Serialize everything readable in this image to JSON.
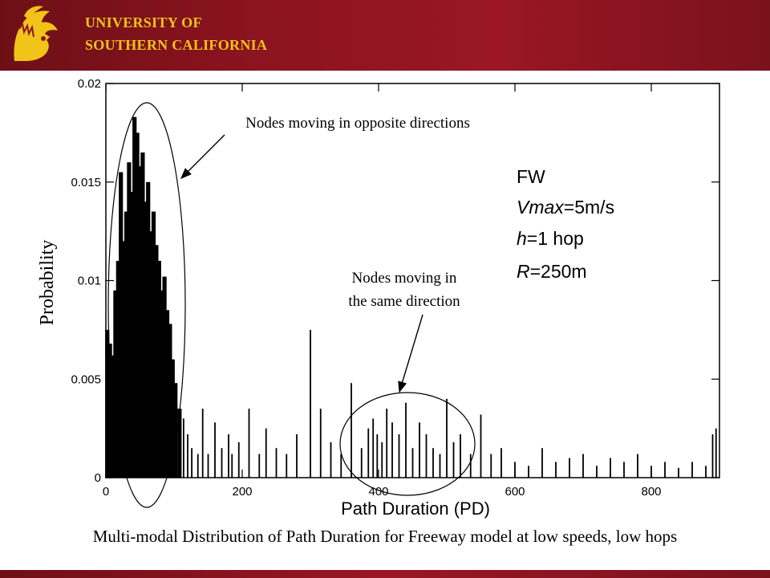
{
  "header": {
    "university_line1": "UNIVERSITY OF",
    "university_line2": "SOUTHERN CALIFORNIA",
    "logo_icon": "trojan-head-icon",
    "bar_color": "#8c1420",
    "text_color": "#f2c318"
  },
  "caption": "Multi-modal Distribution of Path Duration for Freeway model at low speeds, low hops",
  "annotations": {
    "opposite": "Nodes moving in opposite directions",
    "same_line1": "Nodes moving in",
    "same_line2": "the same direction"
  },
  "params": {
    "model": "FW",
    "vmax_var": "Vmax",
    "vmax_val": "=5m/s",
    "h_var": "h",
    "h_val": "=1 hop",
    "r_var": "R",
    "r_val": "=250m"
  },
  "chart_data": {
    "type": "bar",
    "xlabel": "Path Duration (PD)",
    "ylabel": "Probability",
    "xlim": [
      0,
      900
    ],
    "ylim": [
      0,
      0.02
    ],
    "x_ticks": [
      0,
      200,
      400,
      600,
      800
    ],
    "x_tick_labels": [
      "0",
      "200",
      "400",
      "600",
      "800"
    ],
    "y_ticks": [
      0,
      0.005,
      0.01,
      0.015,
      0.02
    ],
    "y_tick_labels": [
      "0",
      "0.005",
      "0.01",
      "0.015",
      "0.02"
    ],
    "grid": false,
    "series": [
      {
        "x": [
          2,
          6,
          10,
          14,
          18,
          22,
          26,
          30,
          34,
          38,
          42,
          46,
          50,
          54,
          58,
          62,
          66,
          70,
          74,
          78,
          82,
          86,
          90,
          94,
          98,
          102,
          108,
          114,
          120,
          126,
          135,
          142,
          150,
          160,
          170,
          180,
          185,
          195,
          210,
          225,
          235,
          250,
          265,
          280,
          300,
          315,
          330,
          345,
          360,
          375,
          385,
          392,
          398,
          405,
          412,
          420,
          430,
          440,
          450,
          460,
          470,
          480,
          490,
          500,
          510,
          520,
          535,
          550,
          565,
          580,
          600,
          620,
          640,
          660,
          680,
          700,
          720,
          740,
          760,
          780,
          800,
          820,
          840,
          860,
          880,
          890,
          895
        ],
        "values": [
          0.0075,
          0.0068,
          0.0062,
          0.0095,
          0.011,
          0.0155,
          0.012,
          0.0135,
          0.016,
          0.0145,
          0.0183,
          0.0175,
          0.0158,
          0.0165,
          0.014,
          0.015,
          0.0125,
          0.0135,
          0.0118,
          0.011,
          0.0095,
          0.0102,
          0.0085,
          0.0078,
          0.006,
          0.0048,
          0.0035,
          0.003,
          0.0022,
          0.0015,
          0.0012,
          0.0035,
          0.0012,
          0.0028,
          0.0015,
          0.0022,
          0.0012,
          0.0018,
          0.0035,
          0.0012,
          0.0025,
          0.0015,
          0.0012,
          0.0022,
          0.0075,
          0.0035,
          0.0018,
          0.0012,
          0.0048,
          0.0015,
          0.0025,
          0.003,
          0.0022,
          0.0018,
          0.0035,
          0.0028,
          0.0022,
          0.0038,
          0.0015,
          0.0028,
          0.0022,
          0.0015,
          0.0012,
          0.004,
          0.0018,
          0.0022,
          0.0012,
          0.0032,
          0.0012,
          0.0015,
          0.0008,
          0.0006,
          0.0015,
          0.0008,
          0.001,
          0.0012,
          0.0006,
          0.001,
          0.0008,
          0.0012,
          0.0006,
          0.0008,
          0.0005,
          0.0008,
          0.0006,
          0.0022,
          0.0025
        ]
      }
    ]
  }
}
